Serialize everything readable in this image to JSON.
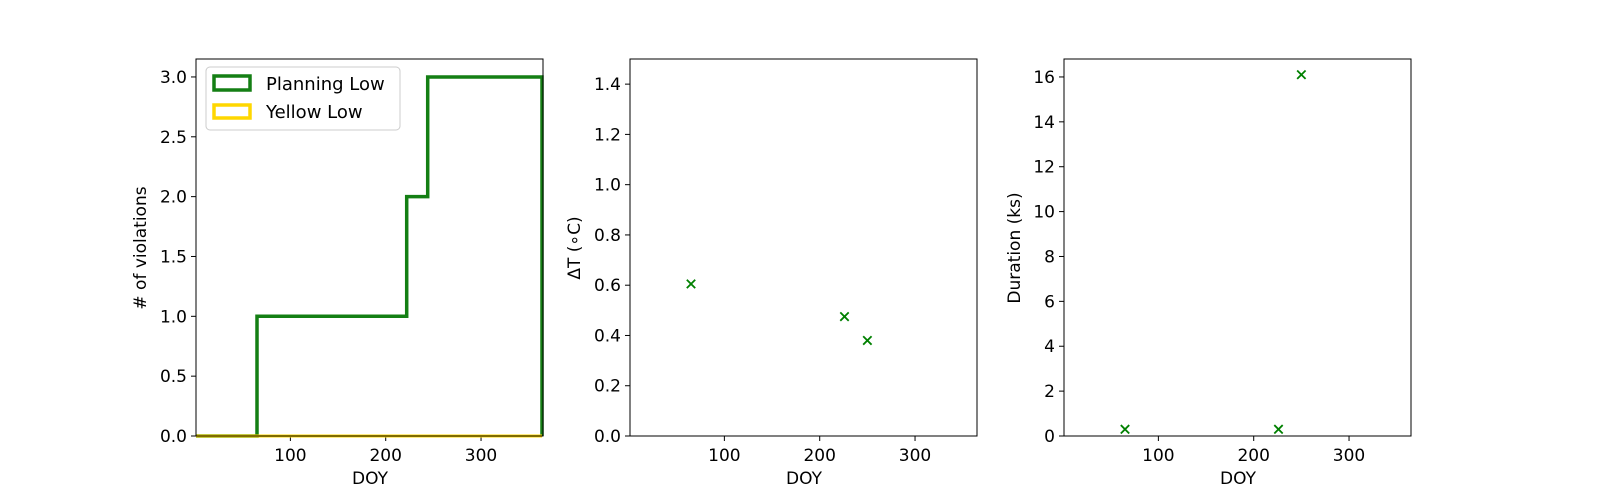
{
  "colors": {
    "planning_low": "#147f14",
    "yellow_low": "#ffd700",
    "marker": "#008000"
  },
  "chart_data": [
    {
      "type": "step",
      "xlabel": "DOY",
      "ylabel": "# of violations",
      "xlim": [
        1,
        365
      ],
      "ylim": [
        0,
        3.15
      ],
      "xticks": [
        100,
        200,
        300
      ],
      "yticks": [
        0.0,
        0.5,
        1.0,
        1.5,
        2.0,
        2.5,
        3.0
      ],
      "xtick_labels": [
        "100",
        "200",
        "300"
      ],
      "ytick_labels": [
        "0.0",
        "0.5",
        "1.0",
        "1.5",
        "2.0",
        "2.5",
        "3.0"
      ],
      "legend": {
        "position": "top-left",
        "entries": [
          "Planning Low",
          "Yellow Low"
        ]
      },
      "series": [
        {
          "name": "Planning Low",
          "x": [
            1,
            65,
            65,
            222,
            222,
            244,
            244,
            364,
            364
          ],
          "y": [
            0,
            0,
            1,
            1,
            2,
            2,
            3,
            3,
            0
          ]
        },
        {
          "name": "Yellow Low",
          "x": [
            1,
            364
          ],
          "y": [
            0,
            0
          ]
        }
      ]
    },
    {
      "type": "scatter",
      "xlabel": "DOY",
      "ylabel": "ΔT ($^\\circ$C)",
      "ylabel_text": "ΔT (",
      "ylabel_unit": "∘C)",
      "xlim": [
        1,
        365
      ],
      "ylim": [
        0,
        1.5
      ],
      "xticks": [
        100,
        200,
        300
      ],
      "yticks": [
        0.0,
        0.2,
        0.4,
        0.6,
        0.8,
        1.0,
        1.2,
        1.4
      ],
      "xtick_labels": [
        "100",
        "200",
        "300"
      ],
      "ytick_labels": [
        "0.0",
        "0.2",
        "0.4",
        "0.6",
        "0.8",
        "1.0",
        "1.2",
        "1.4"
      ],
      "marker": "x",
      "x": [
        65,
        226,
        250
      ],
      "y": [
        0.605,
        0.475,
        0.38
      ]
    },
    {
      "type": "scatter",
      "xlabel": "DOY",
      "ylabel": "Duration (ks)",
      "xlim": [
        1,
        365
      ],
      "ylim": [
        0,
        16.8
      ],
      "xticks": [
        100,
        200,
        300
      ],
      "yticks": [
        0,
        2,
        4,
        6,
        8,
        10,
        12,
        14,
        16
      ],
      "xtick_labels": [
        "100",
        "200",
        "300"
      ],
      "ytick_labels": [
        "0",
        "2",
        "4",
        "6",
        "8",
        "10",
        "12",
        "14",
        "16"
      ],
      "marker": "x",
      "x": [
        65,
        226,
        250
      ],
      "y": [
        0.3,
        0.3,
        16.1
      ]
    }
  ]
}
